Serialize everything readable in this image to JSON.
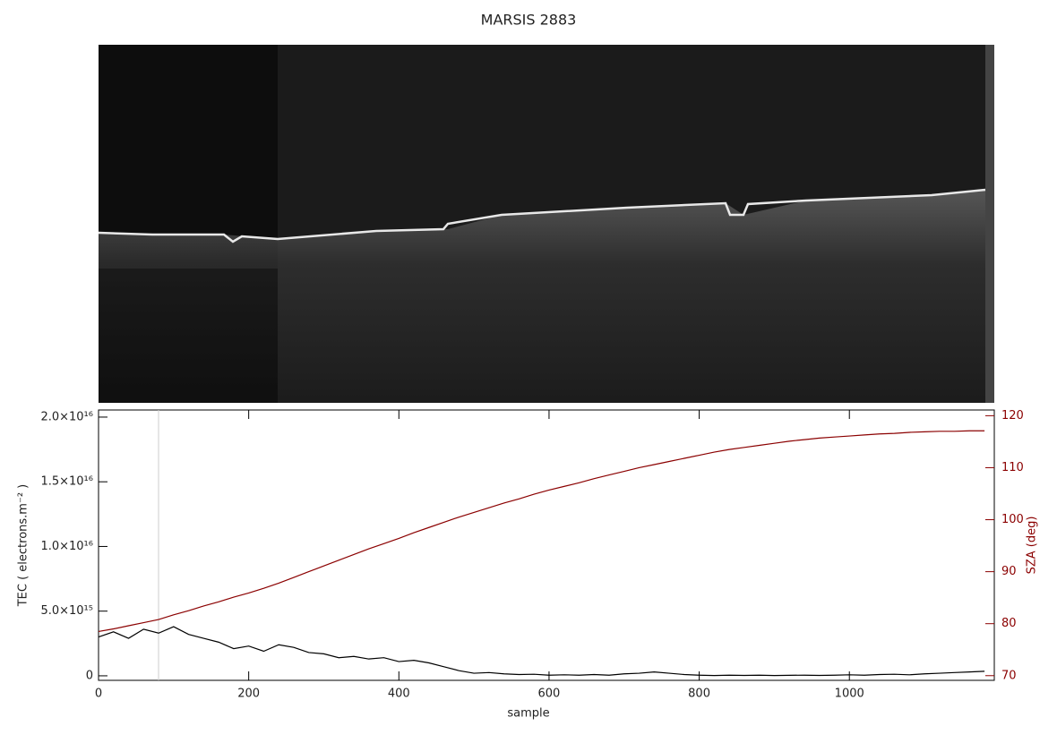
{
  "chart_data": {
    "type": "line",
    "title": "MARSIS 2883",
    "x_label": "sample",
    "y_label": "TEC ( electrons.m⁻² )",
    "y2_label": "SZA (deg)",
    "x": [
      0,
      20,
      40,
      60,
      80,
      100,
      120,
      140,
      160,
      180,
      200,
      220,
      240,
      260,
      280,
      300,
      320,
      340,
      360,
      380,
      400,
      420,
      440,
      460,
      480,
      500,
      520,
      540,
      560,
      580,
      600,
      620,
      640,
      660,
      680,
      700,
      720,
      740,
      760,
      780,
      800,
      820,
      840,
      860,
      880,
      900,
      920,
      940,
      960,
      980,
      1000,
      1020,
      1040,
      1060,
      1080,
      1100,
      1120,
      1140,
      1160,
      1180
    ],
    "series": [
      {
        "name": "TEC",
        "color": "#000000",
        "values": [
          3000000000000000.0,
          3400000000000000.0,
          2900000000000000.0,
          3600000000000000.0,
          3300000000000000.0,
          3800000000000000.0,
          3200000000000000.0,
          2900000000000000.0,
          2600000000000000.0,
          2100000000000000.0,
          2300000000000000.0,
          1900000000000000.0,
          2400000000000000.0,
          2200000000000000.0,
          1800000000000000.0,
          1700000000000000.0,
          1400000000000000.0,
          1500000000000000.0,
          1300000000000000.0,
          1400000000000000.0,
          1100000000000000.0,
          1200000000000000.0,
          1000000000000000.0,
          700000000000000.0,
          400000000000000.0,
          200000000000000.0,
          250000000000000.0,
          150000000000000.0,
          100000000000000.0,
          120000000000000.0,
          50000000000000.0,
          80000000000000.0,
          50000000000000.0,
          100000000000000.0,
          50000000000000.0,
          150000000000000.0,
          200000000000000.0,
          300000000000000.0,
          200000000000000.0,
          100000000000000.0,
          50000000000000.0,
          20000000000000.0,
          50000000000000.0,
          30000000000000.0,
          50000000000000.0,
          20000000000000.0,
          40000000000000.0,
          50000000000000.0,
          30000000000000.0,
          50000000000000.0,
          80000000000000.0,
          50000000000000.0,
          100000000000000.0,
          120000000000000.0,
          80000000000000.0,
          150000000000000.0,
          200000000000000.0,
          250000000000000.0,
          300000000000000.0,
          350000000000000.0
        ]
      },
      {
        "name": "SZA",
        "color": "#8b0000",
        "axis": "y2",
        "values": [
          78.5,
          79.0,
          79.6,
          80.2,
          80.8,
          81.7,
          82.5,
          83.4,
          84.2,
          85.1,
          85.9,
          86.8,
          87.8,
          88.9,
          90.0,
          91.1,
          92.2,
          93.3,
          94.4,
          95.4,
          96.4,
          97.5,
          98.5,
          99.5,
          100.5,
          101.4,
          102.3,
          103.2,
          104.0,
          104.9,
          105.7,
          106.4,
          107.1,
          107.9,
          108.6,
          109.3,
          110.0,
          110.6,
          111.2,
          111.8,
          112.4,
          113.0,
          113.5,
          113.9,
          114.3,
          114.7,
          115.1,
          115.4,
          115.7,
          115.9,
          116.1,
          116.3,
          116.5,
          116.6,
          116.8,
          116.9,
          117.0,
          117.0,
          117.1,
          117.1
        ]
      }
    ],
    "xlim": [
      0,
      1193
    ],
    "xticks": [
      0,
      200,
      400,
      600,
      800,
      1000
    ],
    "ylim": [
      -350000000000000.0,
      2.055e+16
    ],
    "yticks": [
      0,
      {
        "value": 5000000000000000.0,
        "label": "5.0×10¹⁵"
      },
      {
        "value": 1e+16,
        "label": "1.0×10¹⁶"
      },
      {
        "value": 1.5e+16,
        "label": "1.5×10¹⁶"
      },
      {
        "value": 2e+16,
        "label": "2.0×10¹⁶"
      }
    ],
    "y2lim": [
      69.1,
      121.1
    ],
    "y2ticks": [
      70,
      80,
      90,
      100,
      110,
      120
    ]
  }
}
